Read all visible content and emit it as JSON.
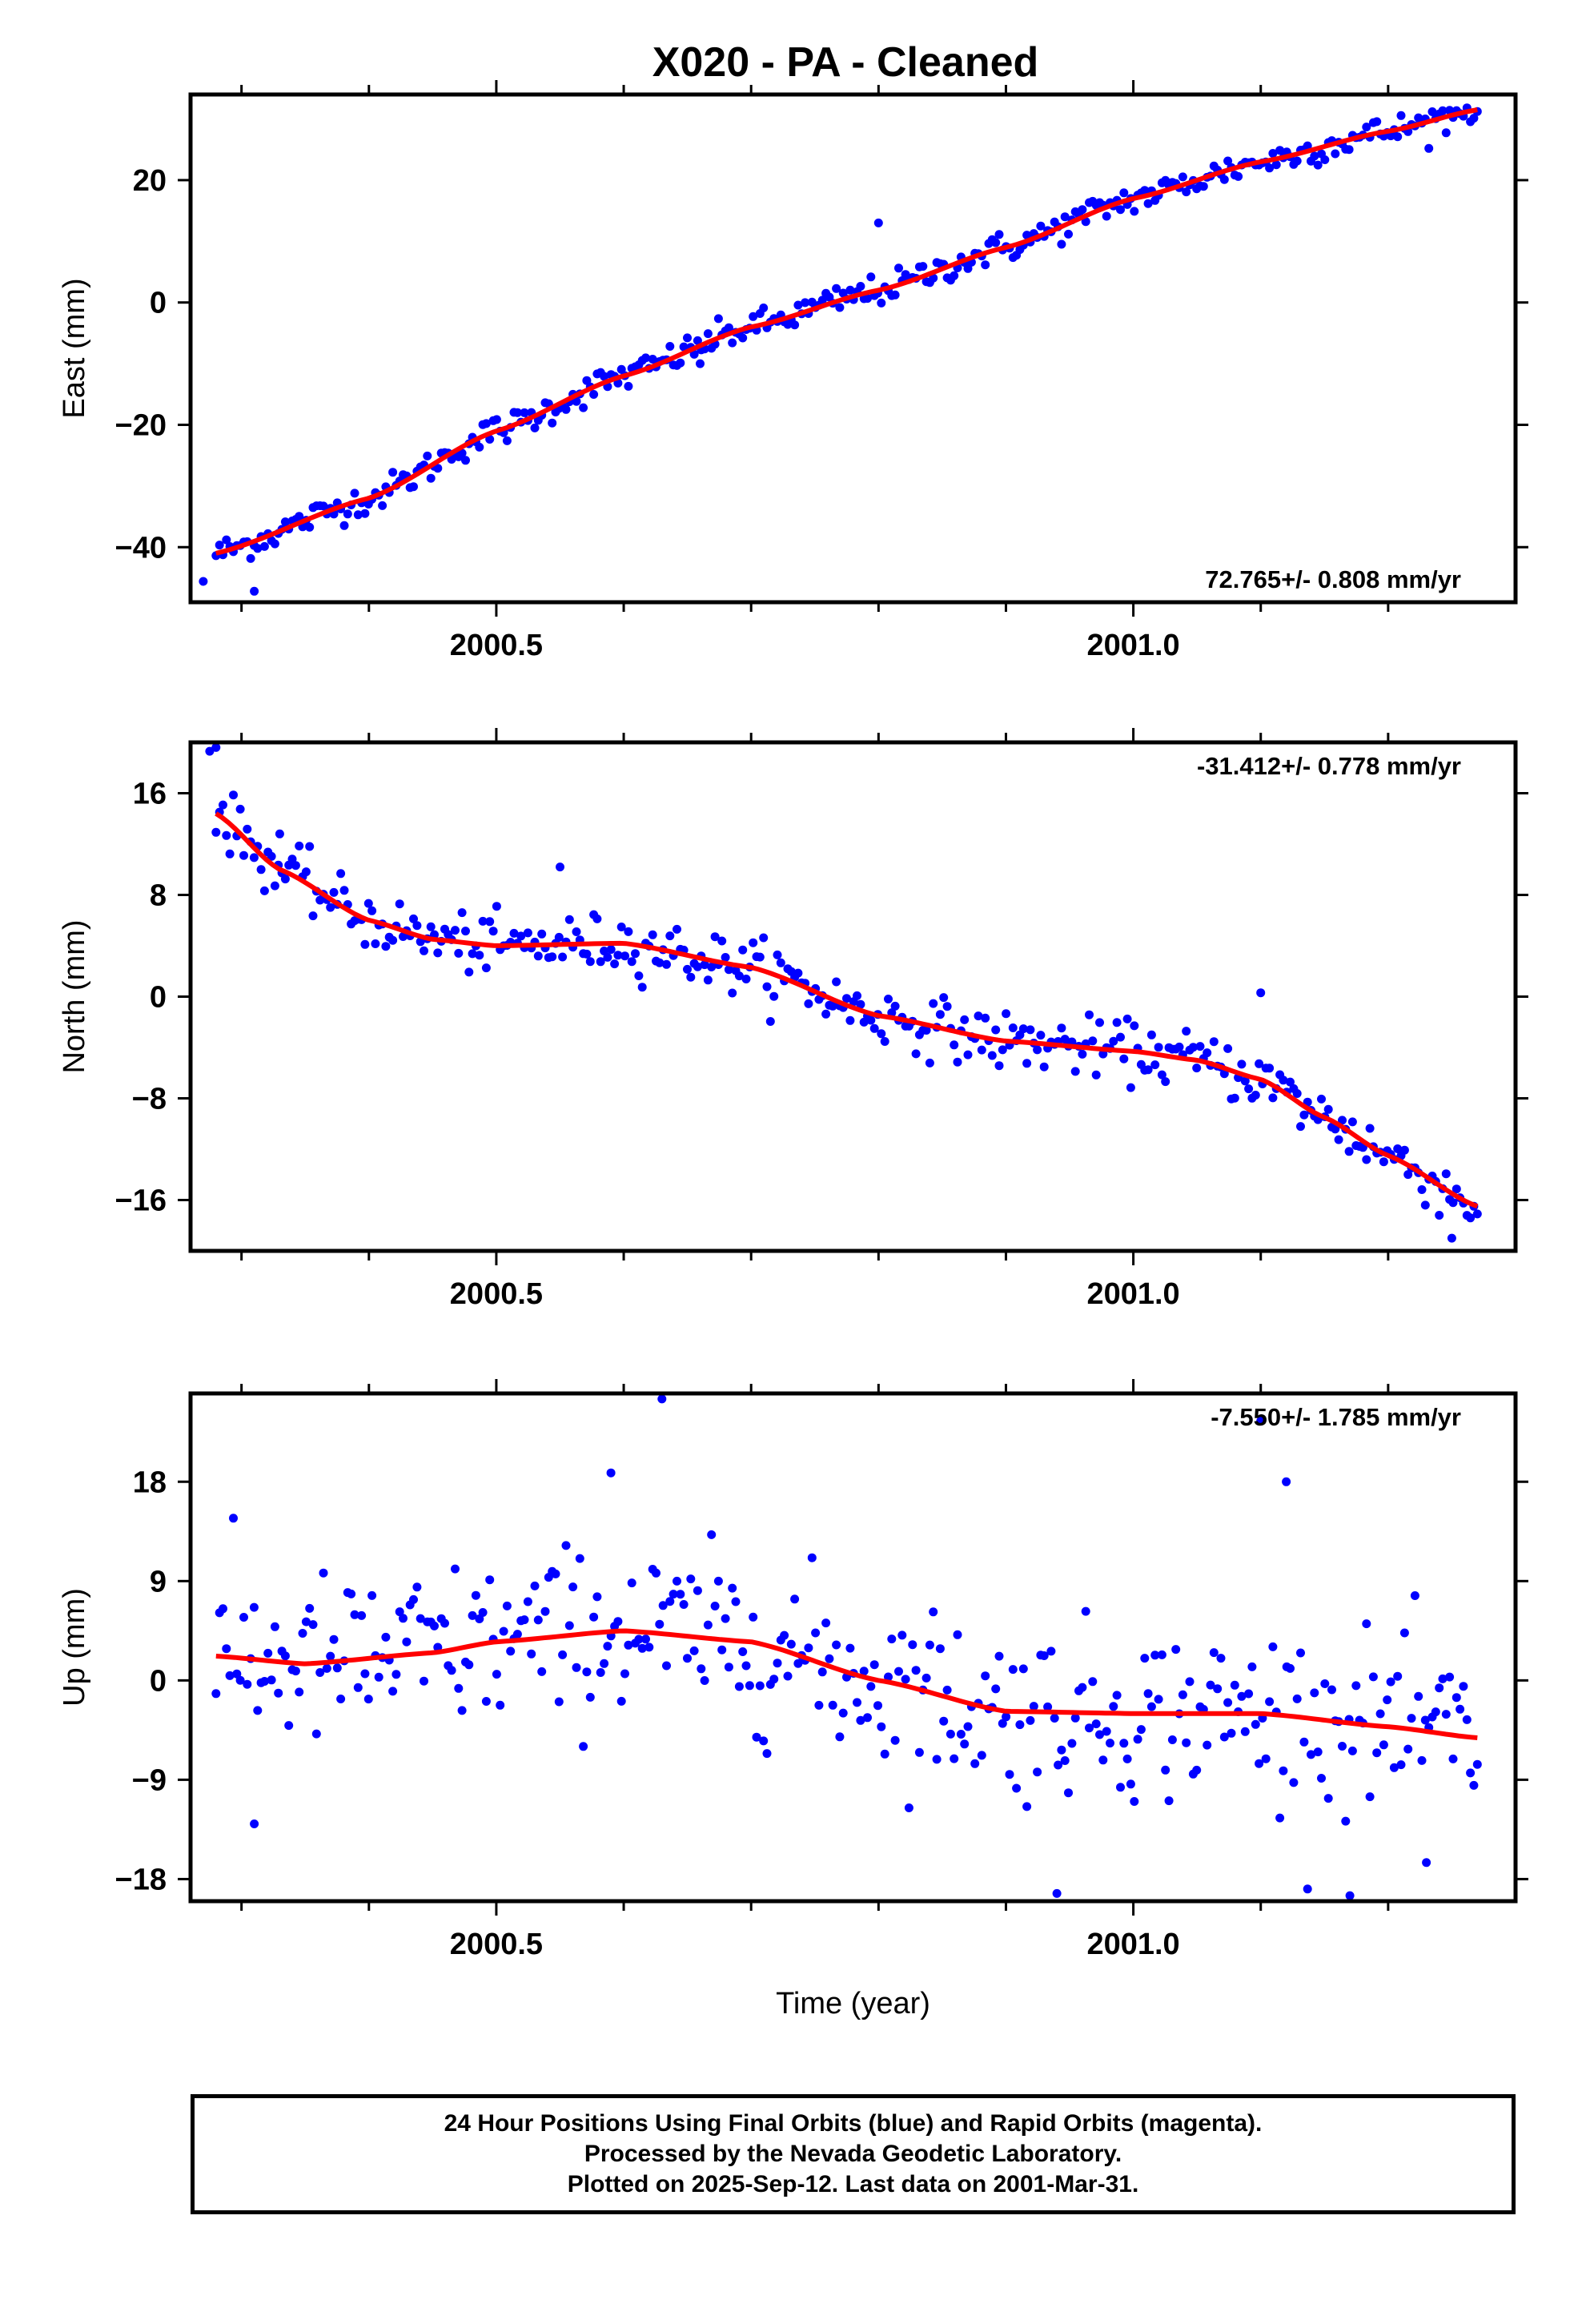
{
  "title": "X020  - PA - Cleaned",
  "colors": {
    "final_orbits": "#0000ff",
    "fit": "#ff0000",
    "frame": "#000000"
  },
  "footer": {
    "line1": "24 Hour Positions Using Final Orbits (blue) and Rapid Orbits (magenta).",
    "line2": "Processed by the Nevada Geodetic Laboratory.",
    "line3": "Plotted on 2025-Sep-12. Last data on 2001-Mar-31."
  },
  "chart_data": [
    {
      "type": "scatter",
      "ylabel": "East (mm)",
      "xlabel": "",
      "xlim": [
        2000.26,
        2001.3
      ],
      "ylim": [
        -49,
        34
      ],
      "x_ticks": [
        2000.5,
        2001.0
      ],
      "x_tick_labels": [
        "2000.5",
        "2001.0"
      ],
      "y_ticks": [
        20,
        0,
        -20,
        -40
      ],
      "y_tick_labels": [
        "20",
        "0",
        "−20",
        "−40"
      ],
      "rate_label": "72.765+/- 0.808 mm/yr",
      "fit_knots": [
        [
          2000.28,
          -41
        ],
        [
          2000.4,
          -32
        ],
        [
          2000.5,
          -21
        ],
        [
          2000.6,
          -12
        ],
        [
          2000.7,
          -4
        ],
        [
          2000.8,
          2
        ],
        [
          2000.9,
          9
        ],
        [
          2001.0,
          17
        ],
        [
          2001.1,
          23
        ],
        [
          2001.2,
          28
        ],
        [
          2001.27,
          31.5
        ]
      ],
      "noise": 1.8,
      "outliers": [
        [
          2000.27,
          -45.6
        ],
        [
          2000.31,
          -47.2
        ],
        [
          2000.66,
          -10
        ],
        [
          2000.8,
          13
        ]
      ]
    },
    {
      "type": "scatter",
      "ylabel": "North (mm)",
      "xlabel": "",
      "xlim": [
        2000.26,
        2001.3
      ],
      "ylim": [
        -20,
        20
      ],
      "x_ticks": [
        2000.5,
        2001.0
      ],
      "x_tick_labels": [
        "2000.5",
        "2001.0"
      ],
      "y_ticks": [
        16,
        8,
        0,
        -8,
        -16
      ],
      "y_tick_labels": [
        "16",
        "8",
        "0",
        "−8",
        "−16"
      ],
      "rate_label": "-31.412+/- 0.778 mm/yr",
      "fit_knots": [
        [
          2000.28,
          14.4
        ],
        [
          2000.33,
          10
        ],
        [
          2000.4,
          6
        ],
        [
          2000.45,
          4.5
        ],
        [
          2000.5,
          4
        ],
        [
          2000.6,
          4.2
        ],
        [
          2000.7,
          2.3
        ],
        [
          2000.8,
          -1.5
        ],
        [
          2000.9,
          -3.5
        ],
        [
          2001.0,
          -4.3
        ],
        [
          2001.05,
          -5
        ],
        [
          2001.1,
          -6.5
        ],
        [
          2001.15,
          -9.5
        ],
        [
          2001.2,
          -12.5
        ],
        [
          2001.27,
          -16.5
        ]
      ],
      "noise": 1.6,
      "outliers": [
        [
          2000.275,
          19.3
        ],
        [
          2000.28,
          19.6
        ],
        [
          2000.33,
          12.8
        ],
        [
          2000.55,
          10.2
        ],
        [
          2001.25,
          -19
        ],
        [
          2001.1,
          0.3
        ]
      ]
    },
    {
      "type": "scatter",
      "ylabel": "Up (mm)",
      "xlabel": "Time (year)",
      "xlim": [
        2000.26,
        2001.3
      ],
      "ylim": [
        -20,
        26
      ],
      "x_ticks": [
        2000.5,
        2001.0
      ],
      "x_tick_labels": [
        "2000.5",
        "2001.0"
      ],
      "y_ticks": [
        18,
        9,
        0,
        -9,
        -18
      ],
      "y_tick_labels": [
        "18",
        "9",
        "0",
        "−9",
        "−18"
      ],
      "rate_label": "-7.550+/- 1.785 mm/yr",
      "fit_knots": [
        [
          2000.28,
          2.2
        ],
        [
          2000.35,
          1.5
        ],
        [
          2000.45,
          2.5
        ],
        [
          2000.5,
          3.5
        ],
        [
          2000.6,
          4.5
        ],
        [
          2000.7,
          3.5
        ],
        [
          2000.8,
          0
        ],
        [
          2000.9,
          -2.8
        ],
        [
          2001.0,
          -3
        ],
        [
          2001.1,
          -3
        ],
        [
          2001.2,
          -4.2
        ],
        [
          2001.27,
          -5.2
        ]
      ],
      "noise": 5.5,
      "outliers": [
        [
          2000.63,
          25.5
        ],
        [
          2001.1,
          23.5
        ],
        [
          2000.59,
          18.8
        ],
        [
          2001.12,
          18
        ],
        [
          2001.17,
          -19.5
        ],
        [
          2000.94,
          -19.3
        ],
        [
          2000.31,
          -13
        ],
        [
          2001.23,
          -16.5
        ]
      ]
    }
  ]
}
